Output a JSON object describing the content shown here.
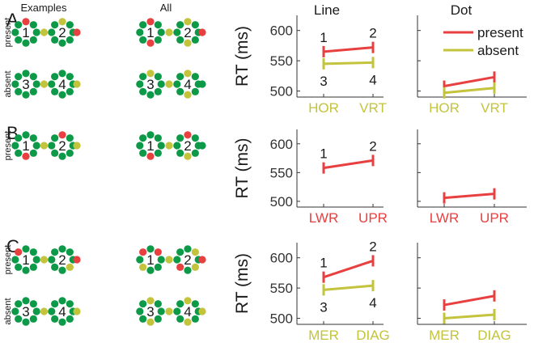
{
  "headers": {
    "examples": "Examples",
    "all": "All",
    "line": "Line",
    "dot": "Dot"
  },
  "colors": {
    "green": "#0c9a48",
    "yellow": "#c3c33c",
    "red": "#e84040",
    "axis": "#333333"
  },
  "rows": [
    {
      "letter": "A",
      "groups": [
        {
          "label": "present",
          "ex": [
            [
              "R",
              "G",
              "G",
              "G",
              "G",
              "G",
              "G",
              "G",
              "Y"
            ],
            [
              "Y",
              "G",
              "G",
              "G",
              "G",
              "G",
              "G",
              "G",
              "R"
            ]
          ],
          "all": [
            [
              "R",
              "G",
              "G",
              "G",
              "R",
              "G",
              "G",
              "G",
              "Y"
            ],
            [
              "Y",
              "G",
              "G",
              "G",
              "Y",
              "G",
              "G",
              "G",
              "R"
            ]
          ],
          "nums": [
            "1",
            "2"
          ]
        },
        {
          "label": "absent",
          "ex": [
            [
              "G",
              "G",
              "G",
              "G",
              "G",
              "G",
              "G",
              "G",
              "Y"
            ],
            [
              "G",
              "G",
              "G",
              "G",
              "G",
              "G",
              "G",
              "G",
              "Y"
            ]
          ],
          "all": [
            [
              "Y",
              "G",
              "G",
              "G",
              "G",
              "G",
              "G",
              "G",
              "Y"
            ],
            [
              "Y",
              "G",
              "G",
              "G",
              "Y",
              "G",
              "G",
              "G",
              "G"
            ]
          ],
          "nums": [
            "3",
            "4"
          ]
        }
      ]
    },
    {
      "letter": "B",
      "groups": [
        {
          "label": "present",
          "ex": [
            [
              "G",
              "G",
              "G",
              "G",
              "R",
              "G",
              "G",
              "G",
              "Y"
            ],
            [
              "R",
              "G",
              "G",
              "G",
              "G",
              "G",
              "G",
              "G",
              "Y"
            ]
          ],
          "all": [
            [
              "G",
              "G",
              "G",
              "G",
              "R",
              "G",
              "G",
              "G",
              "Y"
            ],
            [
              "R",
              "G",
              "G",
              "G",
              "Y",
              "G",
              "G",
              "G",
              "G"
            ]
          ],
          "nums": [
            "1",
            "2"
          ]
        }
      ]
    },
    {
      "letter": "C",
      "groups": [
        {
          "label": "present",
          "ex": [
            [
              "G",
              "G",
              "G",
              "G",
              "G",
              "G",
              "G",
              "R",
              "Y"
            ],
            [
              "G",
              "G",
              "G",
              "Y",
              "G",
              "G",
              "G",
              "G",
              "R"
            ]
          ],
          "all": [
            [
              "G",
              "R",
              "G",
              "G",
              "G",
              "Y",
              "G",
              "R",
              "Y"
            ],
            [
              "G",
              "Y",
              "G",
              "Y",
              "G",
              "R",
              "G",
              "G",
              "R"
            ]
          ],
          "nums": [
            "1",
            "2"
          ]
        },
        {
          "label": "absent",
          "ex": [
            [
              "G",
              "G",
              "G",
              "G",
              "G",
              "G",
              "G",
              "G",
              "Y"
            ],
            [
              "G",
              "G",
              "G",
              "G",
              "G",
              "G",
              "G",
              "G",
              "Y"
            ]
          ],
          "all": [
            [
              "Y",
              "G",
              "G",
              "G",
              "Y",
              "G",
              "G",
              "G",
              "Y"
            ],
            [
              "Y",
              "G",
              "G",
              "G",
              "Y",
              "G",
              "G",
              "G",
              "Y"
            ]
          ],
          "nums": [
            "3",
            "4"
          ]
        }
      ]
    }
  ],
  "chart_data": [
    {
      "panel": "A",
      "column": "Line",
      "type": "line",
      "ylabel": "RT (ms)",
      "yticks": [
        500,
        550,
        600
      ],
      "ylim": [
        490,
        625
      ],
      "categories": [
        "HOR",
        "VRT"
      ],
      "category_color": "yellow",
      "series": [
        {
          "name": "present",
          "values": [
            565,
            572
          ],
          "labels": [
            "1",
            "2"
          ],
          "color": "red"
        },
        {
          "name": "absent",
          "values": [
            545,
            547
          ],
          "labels": [
            "3",
            "4"
          ],
          "color": "yellow"
        }
      ]
    },
    {
      "panel": "A",
      "column": "Dot",
      "type": "line",
      "ylim": [
        490,
        625
      ],
      "categories": [
        "HOR",
        "VRT"
      ],
      "category_color": "yellow",
      "legend": [
        {
          "name": "present",
          "color": "red"
        },
        {
          "name": "absent",
          "color": "yellow"
        }
      ],
      "series": [
        {
          "name": "present",
          "values": [
            508,
            523
          ],
          "color": "red"
        },
        {
          "name": "absent",
          "values": [
            497,
            505
          ],
          "color": "yellow"
        }
      ]
    },
    {
      "panel": "B",
      "column": "Line",
      "type": "line",
      "ylabel": "RT (ms)",
      "yticks": [
        500,
        550,
        600
      ],
      "ylim": [
        490,
        625
      ],
      "categories": [
        "LWR",
        "UPR"
      ],
      "category_color": "red",
      "series": [
        {
          "name": "present",
          "values": [
            558,
            571
          ],
          "labels": [
            "1",
            "2"
          ],
          "color": "red"
        }
      ]
    },
    {
      "panel": "B",
      "column": "Dot",
      "type": "line",
      "ylim": [
        490,
        625
      ],
      "categories": [
        "LWR",
        "UPR"
      ],
      "category_color": "red",
      "series": [
        {
          "name": "present",
          "values": [
            506,
            513
          ],
          "color": "red"
        }
      ]
    },
    {
      "panel": "C",
      "column": "Line",
      "type": "line",
      "ylabel": "RT (ms)",
      "yticks": [
        500,
        550,
        600
      ],
      "ylim": [
        490,
        625
      ],
      "categories": [
        "MER",
        "DIAG"
      ],
      "category_color": "yellow",
      "series": [
        {
          "name": "present",
          "values": [
            568,
            595
          ],
          "labels": [
            "1",
            "2"
          ],
          "color": "red"
        },
        {
          "name": "absent",
          "values": [
            547,
            554
          ],
          "labels": [
            "3",
            "4"
          ],
          "color": "yellow"
        }
      ]
    },
    {
      "panel": "C",
      "column": "Dot",
      "type": "line",
      "ylim": [
        490,
        625
      ],
      "categories": [
        "MER",
        "DIAG"
      ],
      "category_color": "yellow",
      "series": [
        {
          "name": "present",
          "values": [
            522,
            537
          ],
          "color": "red"
        },
        {
          "name": "absent",
          "values": [
            500,
            506
          ],
          "color": "yellow"
        }
      ]
    }
  ]
}
